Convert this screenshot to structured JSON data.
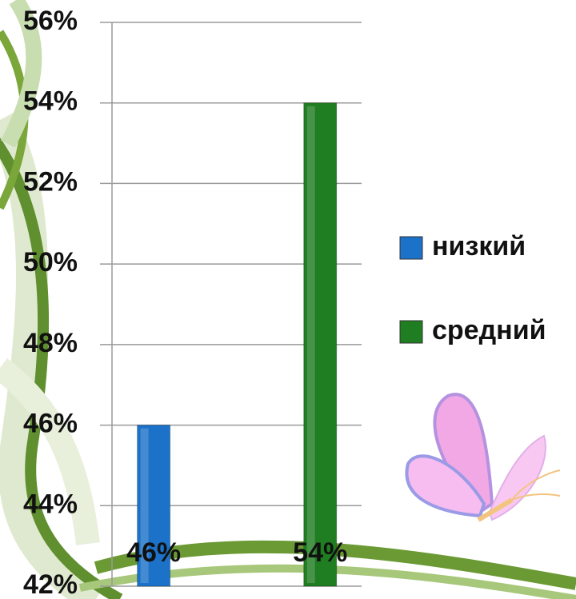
{
  "chart_data": {
    "type": "bar",
    "categories": [
      null
    ],
    "series": [
      {
        "name": "низкий",
        "color": "#1b72c8",
        "values": [
          46
        ],
        "value_labels": [
          "46%"
        ]
      },
      {
        "name": "средний",
        "color": "#1f7d22",
        "values": [
          54
        ],
        "value_labels": [
          "54%"
        ]
      }
    ],
    "ylim": [
      42,
      56
    ],
    "yticks": [
      {
        "value": 42,
        "label": "42%"
      },
      {
        "value": 44,
        "label": "44%"
      },
      {
        "value": 46,
        "label": "46%"
      },
      {
        "value": 48,
        "label": "48%"
      },
      {
        "value": 50,
        "label": "50%"
      },
      {
        "value": 52,
        "label": "52%"
      },
      {
        "value": 54,
        "label": "54%"
      },
      {
        "value": 56,
        "label": "56%"
      }
    ],
    "grid": true,
    "legend": "right"
  }
}
